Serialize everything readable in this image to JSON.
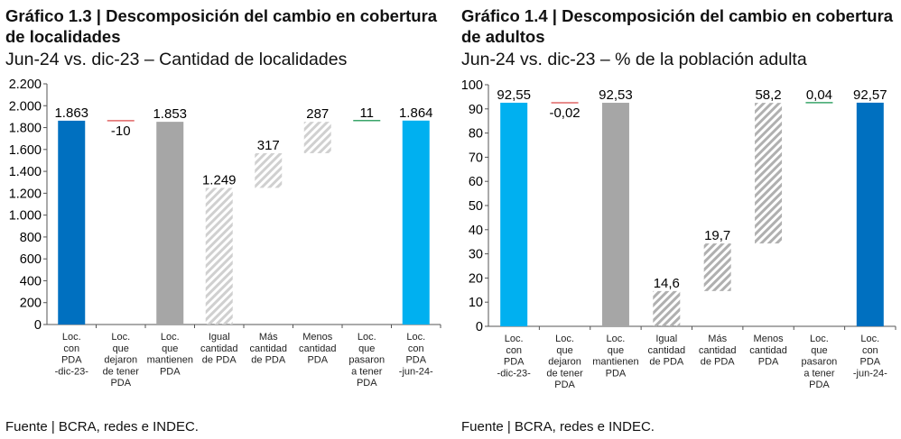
{
  "chart_data": [
    {
      "type": "bar",
      "subtype": "waterfall",
      "title": "Gráfico 1.3 | Descomposición del cambio en cobertura de localidades",
      "subtitle": "Jun-24 vs. dic-23 – Cantidad de localidades",
      "source": "Fuente | BCRA, redes e INDEC.",
      "ylim": [
        0,
        2200
      ],
      "yticks": [
        0,
        200,
        400,
        600,
        800,
        1000,
        1200,
        1400,
        1600,
        1800,
        2000,
        2200
      ],
      "ytick_labels": [
        "0",
        "200",
        "400",
        "600",
        "800",
        "1.000",
        "1.200",
        "1.400",
        "1.600",
        "1.800",
        "2.000",
        "2.200"
      ],
      "categories": [
        [
          "Loc.",
          "con",
          "PDA",
          "-dic-23-"
        ],
        [
          "Loc.",
          "que",
          "dejaron",
          "de tener",
          "PDA"
        ],
        [
          "Loc.",
          "que",
          "mantienen",
          "PDA"
        ],
        [
          "Igual",
          "cantidad",
          "de PDA"
        ],
        [
          "Más",
          "cantidad",
          "de PDA"
        ],
        [
          "Menos",
          "cantidad",
          "PDA"
        ],
        [
          "Loc.",
          "que",
          "pasaron",
          "a tener",
          "PDA"
        ],
        [
          "Loc.",
          "con",
          "PDA",
          "-jun-24-"
        ]
      ],
      "bars": [
        {
          "base": 0,
          "top": 1863,
          "label": "1.863",
          "style": "solid",
          "color": "#0070c0"
        },
        {
          "base": 1853,
          "top": 1863,
          "label": "-10",
          "style": "line",
          "color": "#e06666"
        },
        {
          "base": 0,
          "top": 1853,
          "label": "1.853",
          "style": "solid",
          "color": "#a6a6a6"
        },
        {
          "base": 0,
          "top": 1249,
          "label": "1.249",
          "style": "hatch",
          "color": "#d0d0d0"
        },
        {
          "base": 1249,
          "top": 1566,
          "label": "317",
          "style": "hatch",
          "color": "#d0d0d0"
        },
        {
          "base": 1566,
          "top": 1853,
          "label": "287",
          "style": "hatch",
          "color": "#d0d0d0"
        },
        {
          "base": 1853,
          "top": 1864,
          "label": "11",
          "style": "line",
          "color": "#3aa56a"
        },
        {
          "base": 0,
          "top": 1864,
          "label": "1.864",
          "style": "solid",
          "color": "#00b0f0"
        }
      ]
    },
    {
      "type": "bar",
      "subtype": "waterfall",
      "title": "Gráfico 1.4 | Descomposición del cambio en cobertura de adultos",
      "subtitle": "Jun-24 vs. dic-23 – % de la población adulta",
      "source": "Fuente | BCRA, redes e INDEC.",
      "ylim": [
        0,
        100
      ],
      "yticks": [
        0,
        10,
        20,
        30,
        40,
        50,
        60,
        70,
        80,
        90,
        100
      ],
      "ytick_labels": [
        "0",
        "10",
        "20",
        "30",
        "40",
        "50",
        "60",
        "70",
        "80",
        "90",
        "100"
      ],
      "categories": [
        [
          "Loc.",
          "con",
          "PDA",
          "-dic-23-"
        ],
        [
          "Loc.",
          "que",
          "dejaron",
          "de tener",
          "PDA"
        ],
        [
          "Loc.",
          "que",
          "mantienen",
          "PDA"
        ],
        [
          "Igual",
          "cantidad",
          "de PDA"
        ],
        [
          "Más",
          "cantidad",
          "de PDA"
        ],
        [
          "Menos",
          "cantidad",
          "PDA"
        ],
        [
          "Loc.",
          "que",
          "pasaron",
          "a tener",
          "PDA"
        ],
        [
          "Loc.",
          "con",
          "PDA",
          "-jun-24-"
        ]
      ],
      "bars": [
        {
          "base": 0,
          "top": 92.55,
          "label": "92,55",
          "style": "solid",
          "color": "#00b0f0"
        },
        {
          "base": 92.53,
          "top": 92.55,
          "label": "-0,02",
          "style": "line",
          "color": "#e06666"
        },
        {
          "base": 0,
          "top": 92.53,
          "label": "92,53",
          "style": "solid",
          "color": "#a6a6a6"
        },
        {
          "base": 0,
          "top": 14.6,
          "label": "14,6",
          "style": "hatch",
          "color": "#b0b0b0"
        },
        {
          "base": 14.6,
          "top": 34.3,
          "label": "19,7",
          "style": "hatch",
          "color": "#b0b0b0"
        },
        {
          "base": 34.3,
          "top": 92.5,
          "label": "58,2",
          "style": "hatch",
          "color": "#b0b0b0"
        },
        {
          "base": 92.53,
          "top": 92.57,
          "label": "0,04",
          "style": "line",
          "color": "#3aa56a"
        },
        {
          "base": 0,
          "top": 92.57,
          "label": "92,57",
          "style": "solid",
          "color": "#0070c0"
        }
      ]
    }
  ]
}
